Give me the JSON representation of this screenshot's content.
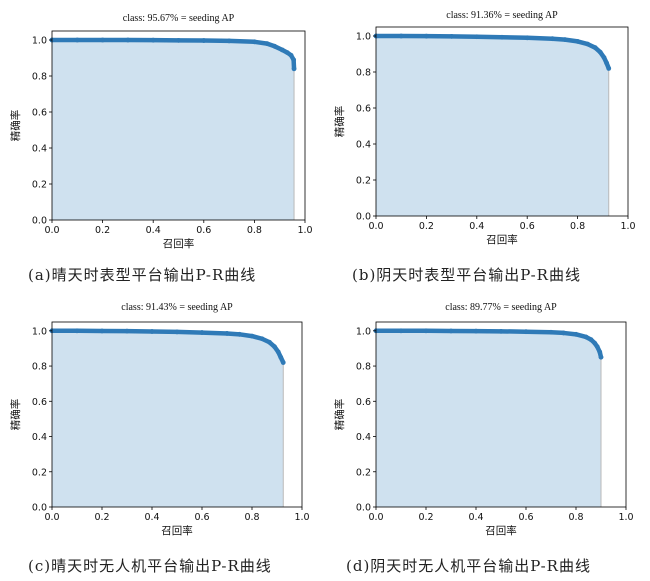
{
  "chart_data": [
    {
      "type": "area",
      "title": "class: 95.67% = seeding AP",
      "xlabel": "召回率",
      "ylabel": "精确率",
      "caption": "(a)晴天时表型平台输出P-R曲线",
      "xlim": [
        0.0,
        1.0
      ],
      "ylim": [
        0.0,
        1.05
      ],
      "xticks": [
        "0.0",
        "0.2",
        "0.4",
        "0.6",
        "0.8",
        "1.0"
      ],
      "yticks": [
        "0.0",
        "0.2",
        "0.4",
        "0.6",
        "0.8",
        "1.0"
      ],
      "grid": false,
      "legend": "none",
      "colors": {
        "line": "#2f7ab7",
        "fill": "#cfe1ef"
      },
      "x": [
        0.0,
        0.1,
        0.2,
        0.3,
        0.4,
        0.5,
        0.6,
        0.7,
        0.8,
        0.85,
        0.88,
        0.91,
        0.93,
        0.945,
        0.955,
        0.9567
      ],
      "y": [
        1.0,
        1.0,
        1.0,
        1.0,
        0.999,
        0.998,
        0.997,
        0.995,
        0.99,
        0.98,
        0.965,
        0.945,
        0.93,
        0.915,
        0.89,
        0.84
      ]
    },
    {
      "type": "area",
      "title": "class: 91.36% = seeding AP",
      "xlabel": "召回率",
      "ylabel": "精确率",
      "caption": "(b)阴天时表型平台输出P-R曲线",
      "xlim": [
        0.0,
        1.0
      ],
      "ylim": [
        0.0,
        1.05
      ],
      "xticks": [
        "0.0",
        "0.2",
        "0.4",
        "0.6",
        "0.8",
        "1.0"
      ],
      "yticks": [
        "0.0",
        "0.2",
        "0.4",
        "0.6",
        "0.8",
        "1.0"
      ],
      "grid": false,
      "legend": "none",
      "colors": {
        "line": "#2f7ab7",
        "fill": "#cfe1ef"
      },
      "x": [
        0.0,
        0.1,
        0.2,
        0.3,
        0.4,
        0.5,
        0.6,
        0.7,
        0.75,
        0.8,
        0.84,
        0.87,
        0.89,
        0.905,
        0.915,
        0.9236
      ],
      "y": [
        1.0,
        1.0,
        0.999,
        0.998,
        0.996,
        0.993,
        0.99,
        0.985,
        0.98,
        0.97,
        0.955,
        0.935,
        0.91,
        0.88,
        0.85,
        0.82
      ]
    },
    {
      "type": "area",
      "title": "class: 91.43% = seeding AP",
      "xlabel": "召回率",
      "ylabel": "精确率",
      "caption": "(c)晴天时无人机平台输出P-R曲线",
      "xlim": [
        0.0,
        1.0
      ],
      "ylim": [
        0.0,
        1.05
      ],
      "xticks": [
        "0.0",
        "0.2",
        "0.4",
        "0.6",
        "0.8",
        "1.0"
      ],
      "yticks": [
        "0.0",
        "0.2",
        "0.4",
        "0.6",
        "0.8",
        "1.0"
      ],
      "grid": false,
      "legend": "none",
      "colors": {
        "line": "#2f7ab7",
        "fill": "#cfe1ef"
      },
      "x": [
        0.0,
        0.1,
        0.2,
        0.3,
        0.4,
        0.5,
        0.6,
        0.7,
        0.75,
        0.8,
        0.84,
        0.87,
        0.89,
        0.905,
        0.915,
        0.925
      ],
      "y": [
        1.0,
        1.0,
        0.999,
        0.998,
        0.996,
        0.994,
        0.99,
        0.985,
        0.98,
        0.97,
        0.955,
        0.935,
        0.91,
        0.88,
        0.85,
        0.82
      ]
    },
    {
      "type": "area",
      "title": "class: 89.77% = seeding AP",
      "xlabel": "召回率",
      "ylabel": "精确率",
      "caption": "(d)阴天时无人机平台输出P-R曲线",
      "xlim": [
        0.0,
        1.0
      ],
      "ylim": [
        0.0,
        1.05
      ],
      "xticks": [
        "0.0",
        "0.2",
        "0.4",
        "0.6",
        "0.8",
        "1.0"
      ],
      "yticks": [
        "0.0",
        "0.2",
        "0.4",
        "0.6",
        "0.8",
        "1.0"
      ],
      "grid": false,
      "legend": "none",
      "colors": {
        "line": "#2f7ab7",
        "fill": "#cfe1ef"
      },
      "x": [
        0.0,
        0.1,
        0.2,
        0.3,
        0.4,
        0.5,
        0.6,
        0.7,
        0.75,
        0.8,
        0.84,
        0.86,
        0.875,
        0.885,
        0.895,
        0.9
      ],
      "y": [
        1.0,
        1.0,
        1.0,
        0.999,
        0.998,
        0.997,
        0.995,
        0.992,
        0.988,
        0.98,
        0.965,
        0.95,
        0.93,
        0.91,
        0.88,
        0.85
      ]
    }
  ]
}
